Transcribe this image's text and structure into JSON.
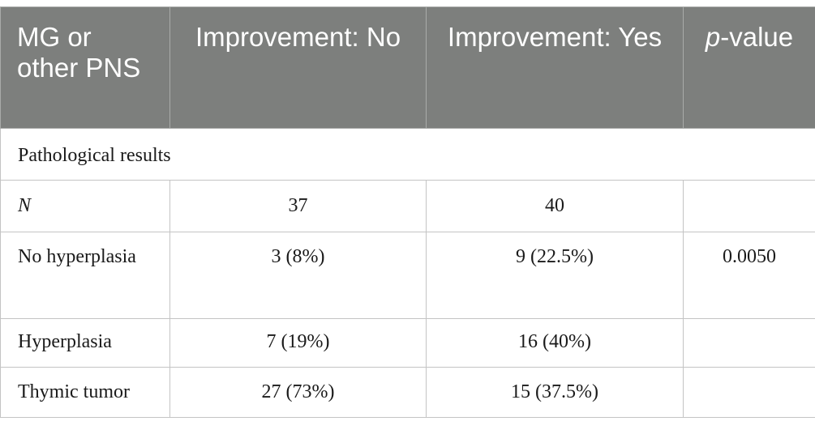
{
  "table": {
    "headers": {
      "col1": "MG or other PNS",
      "col2": "Improvement: No",
      "col3": "Improvement: Yes",
      "col4": "p-value"
    },
    "section_title": "Pathological results",
    "rows": [
      {
        "label": "N",
        "no": "37",
        "yes": "40",
        "p": ""
      },
      {
        "label": "No hyperplasia",
        "no": "3 (8%)",
        "yes": "9 (22.5%)",
        "p": "0.0050"
      },
      {
        "label": "Hyperplasia",
        "no": "7 (19%)",
        "yes": "16 (40%)",
        "p": ""
      },
      {
        "label": "Thymic tumor",
        "no": "27 (73%)",
        "yes": "15 (37.5%)",
        "p": ""
      }
    ]
  }
}
